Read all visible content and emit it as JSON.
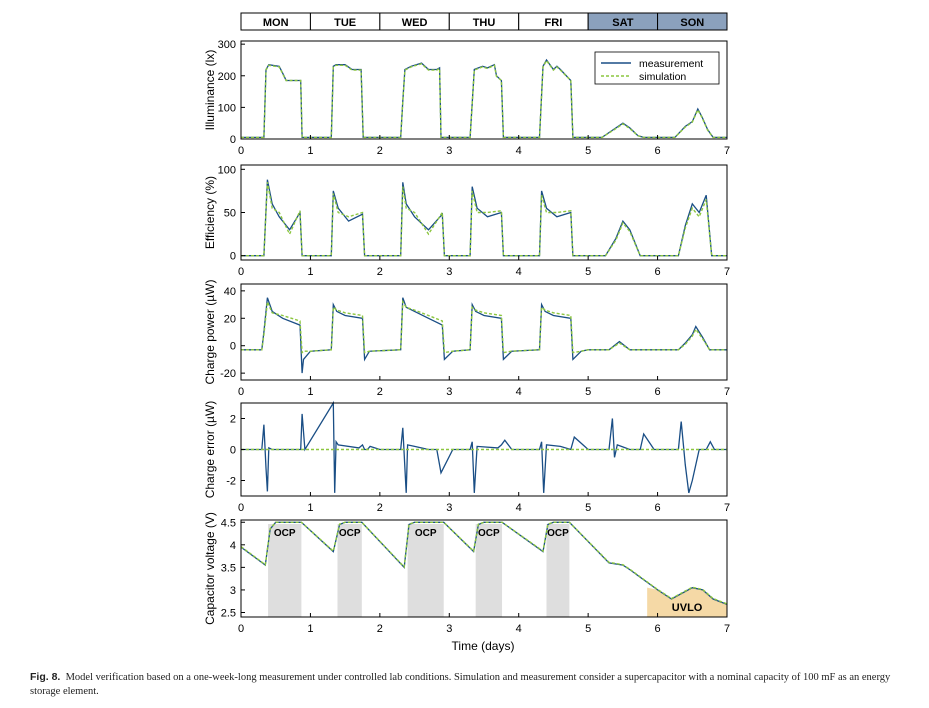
{
  "figure": {
    "caption_label": "Fig. 8.",
    "caption_text": "Model verification based on a one-week-long measurement under controlled lab conditions. Simulation and measurement consider a supercapacitor with a nominal capacity of 100 mF as an energy storage element.",
    "x_label": "Time (days)",
    "x_ticks": [
      "0",
      "1",
      "2",
      "3",
      "4",
      "5",
      "6",
      "7"
    ]
  },
  "colors": {
    "measurement": "#1a4e85",
    "simulation": "#8cc63f",
    "weekday_bg": "#ffffff",
    "weekend_bg": "#8ba1bd",
    "ocp_shade": "#dedede",
    "uvlo_shade": "#f5d9a6"
  },
  "days": [
    {
      "label": "MON",
      "weekend": false
    },
    {
      "label": "TUE",
      "weekend": false
    },
    {
      "label": "WED",
      "weekend": false
    },
    {
      "label": "THU",
      "weekend": false
    },
    {
      "label": "FRI",
      "weekend": false
    },
    {
      "label": "SAT",
      "weekend": true
    },
    {
      "label": "SON",
      "weekend": true
    }
  ],
  "chart_data": [
    {
      "type": "line",
      "id": "illuminance",
      "ylabel": "Illuminance (lx)",
      "xlim": [
        0,
        7
      ],
      "ylim": [
        0,
        310
      ],
      "yticks": [
        "0",
        "100",
        "200",
        "300"
      ],
      "legend": {
        "position": "top-right",
        "entries": [
          "measurement",
          "simulation"
        ]
      },
      "series": [
        {
          "name": "measurement",
          "x": [
            0,
            0.33,
            0.36,
            0.4,
            0.55,
            0.62,
            0.65,
            0.8,
            0.86,
            0.88,
            1.3,
            1.33,
            1.37,
            1.5,
            1.6,
            1.73,
            1.76,
            2.3,
            2.33,
            2.36,
            2.45,
            2.6,
            2.7,
            2.82,
            2.86,
            2.88,
            3.3,
            3.36,
            3.42,
            3.48,
            3.55,
            3.65,
            3.68,
            3.75,
            3.78,
            4.3,
            4.35,
            4.4,
            4.5,
            4.55,
            4.6,
            4.75,
            4.78,
            5,
            5.2,
            5.4,
            5.5,
            5.6,
            5.72,
            5.8,
            6,
            6.25,
            6.4,
            6.5,
            6.58,
            6.64,
            6.72,
            6.8,
            7
          ],
          "y": [
            5,
            5,
            220,
            235,
            230,
            200,
            185,
            185,
            185,
            5,
            5,
            230,
            235,
            235,
            220,
            220,
            5,
            5,
            120,
            220,
            230,
            240,
            220,
            220,
            225,
            5,
            5,
            220,
            225,
            230,
            225,
            235,
            200,
            185,
            5,
            5,
            230,
            250,
            220,
            230,
            220,
            185,
            5,
            5,
            5,
            35,
            50,
            35,
            10,
            5,
            5,
            5,
            40,
            55,
            95,
            70,
            30,
            5,
            5
          ]
        },
        {
          "name": "simulation",
          "x": [
            0,
            0.33,
            0.36,
            0.4,
            0.55,
            0.62,
            0.65,
            0.8,
            0.86,
            0.88,
            1.3,
            1.33,
            1.37,
            1.5,
            1.6,
            1.73,
            1.76,
            2.3,
            2.33,
            2.36,
            2.45,
            2.6,
            2.7,
            2.82,
            2.86,
            2.88,
            3.3,
            3.36,
            3.42,
            3.48,
            3.55,
            3.65,
            3.68,
            3.75,
            3.78,
            4.3,
            4.35,
            4.4,
            4.5,
            4.55,
            4.6,
            4.75,
            4.78,
            5,
            5.2,
            5.4,
            5.5,
            5.6,
            5.72,
            5.8,
            6,
            6.25,
            6.4,
            6.5,
            6.58,
            6.64,
            6.72,
            6.8,
            7
          ],
          "y": [
            5,
            5,
            218,
            233,
            228,
            198,
            185,
            185,
            185,
            5,
            5,
            228,
            233,
            233,
            218,
            218,
            5,
            5,
            118,
            218,
            228,
            238,
            218,
            218,
            223,
            5,
            5,
            218,
            223,
            228,
            223,
            233,
            198,
            185,
            5,
            5,
            228,
            248,
            218,
            228,
            218,
            185,
            5,
            5,
            5,
            33,
            48,
            33,
            10,
            5,
            5,
            5,
            38,
            53,
            92,
            68,
            28,
            5,
            5
          ]
        }
      ]
    },
    {
      "type": "line",
      "id": "efficiency",
      "ylabel": "Efficiency (%)",
      "xlim": [
        0,
        7
      ],
      "ylim": [
        -5,
        105
      ],
      "yticks": [
        "0",
        "50",
        "100"
      ],
      "series": [
        {
          "name": "measurement",
          "x": [
            0,
            0.33,
            0.38,
            0.45,
            0.55,
            0.7,
            0.85,
            0.88,
            1.3,
            1.33,
            1.4,
            1.55,
            1.75,
            1.78,
            2.3,
            2.33,
            2.38,
            2.5,
            2.7,
            2.9,
            2.93,
            3.3,
            3.33,
            3.4,
            3.55,
            3.75,
            3.78,
            4.3,
            4.33,
            4.4,
            4.55,
            4.75,
            4.78,
            5,
            5.25,
            5.4,
            5.5,
            5.6,
            5.75,
            6,
            6.3,
            6.4,
            6.5,
            6.6,
            6.7,
            6.78,
            7
          ],
          "y": [
            0,
            0,
            88,
            60,
            45,
            30,
            50,
            0,
            0,
            75,
            55,
            40,
            48,
            0,
            0,
            85,
            60,
            45,
            30,
            48,
            0,
            0,
            80,
            55,
            45,
            50,
            0,
            0,
            75,
            55,
            45,
            50,
            0,
            0,
            0,
            20,
            40,
            30,
            0,
            0,
            0,
            35,
            60,
            50,
            70,
            0,
            0
          ]
        },
        {
          "name": "simulation",
          "x": [
            0,
            0.33,
            0.38,
            0.45,
            0.55,
            0.7,
            0.85,
            0.88,
            1.3,
            1.33,
            1.4,
            1.55,
            1.75,
            1.78,
            2.3,
            2.33,
            2.38,
            2.5,
            2.7,
            2.9,
            2.93,
            3.3,
            3.33,
            3.4,
            3.55,
            3.75,
            3.78,
            4.3,
            4.33,
            4.4,
            4.55,
            4.75,
            4.78,
            5,
            5.25,
            5.4,
            5.5,
            5.6,
            5.75,
            6,
            6.3,
            6.4,
            6.5,
            6.6,
            6.7,
            6.78,
            7
          ],
          "y": [
            0,
            0,
            85,
            55,
            50,
            25,
            52,
            0,
            0,
            72,
            50,
            45,
            50,
            0,
            0,
            80,
            55,
            50,
            25,
            50,
            0,
            0,
            75,
            50,
            50,
            52,
            0,
            0,
            70,
            50,
            50,
            52,
            0,
            0,
            0,
            18,
            38,
            28,
            0,
            0,
            0,
            32,
            55,
            45,
            65,
            0,
            0
          ]
        }
      ]
    },
    {
      "type": "line",
      "id": "charge_power",
      "ylabel": "Charge power (µW)",
      "xlim": [
        0,
        7
      ],
      "ylim": [
        -25,
        45
      ],
      "yticks": [
        "-20",
        "0",
        "20",
        "40"
      ],
      "series": [
        {
          "name": "measurement",
          "x": [
            0,
            0.3,
            0.33,
            0.38,
            0.45,
            0.6,
            0.85,
            0.88,
            0.9,
            1,
            1.3,
            1.33,
            1.38,
            1.5,
            1.75,
            1.78,
            1.85,
            2.3,
            2.33,
            2.38,
            2.5,
            2.7,
            2.9,
            2.93,
            3.05,
            3.3,
            3.33,
            3.38,
            3.5,
            3.75,
            3.78,
            3.9,
            4.3,
            4.33,
            4.38,
            4.5,
            4.75,
            4.78,
            4.9,
            5,
            5.3,
            5.45,
            5.6,
            6,
            6.3,
            6.4,
            6.5,
            6.55,
            6.65,
            6.75,
            7
          ],
          "y": [
            -3,
            -3,
            10,
            35,
            25,
            20,
            15,
            -20,
            -10,
            -4,
            -3,
            30,
            25,
            22,
            20,
            -10,
            -4,
            -3,
            35,
            28,
            25,
            20,
            15,
            -10,
            -4,
            -3,
            30,
            25,
            22,
            20,
            -10,
            -4,
            -3,
            30,
            25,
            22,
            20,
            -10,
            -4,
            -3,
            -3,
            3,
            -3,
            -3,
            -3,
            2,
            8,
            14,
            6,
            -3,
            -3
          ]
        },
        {
          "name": "simulation",
          "x": [
            0,
            0.3,
            0.33,
            0.38,
            0.45,
            0.6,
            0.85,
            0.88,
            0.9,
            1,
            1.3,
            1.33,
            1.38,
            1.5,
            1.75,
            1.78,
            1.85,
            2.3,
            2.33,
            2.38,
            2.5,
            2.7,
            2.9,
            2.93,
            3.05,
            3.3,
            3.33,
            3.38,
            3.5,
            3.75,
            3.78,
            3.9,
            4.3,
            4.33,
            4.38,
            4.5,
            4.75,
            4.78,
            4.9,
            5,
            5.3,
            5.45,
            5.6,
            6,
            6.3,
            6.4,
            6.5,
            6.55,
            6.65,
            6.75,
            7
          ],
          "y": [
            -3,
            -3,
            8,
            32,
            24,
            22,
            18,
            -5,
            -4,
            -4,
            -3,
            28,
            26,
            24,
            22,
            -5,
            -4,
            -3,
            32,
            28,
            26,
            22,
            18,
            -5,
            -4,
            -3,
            28,
            26,
            24,
            22,
            -5,
            -4,
            -3,
            28,
            26,
            24,
            22,
            -5,
            -4,
            -3,
            -3,
            2,
            -3,
            -3,
            -3,
            1,
            7,
            12,
            5,
            -3,
            -3
          ]
        }
      ]
    },
    {
      "type": "line",
      "id": "charge_error",
      "ylabel": "Charge error (µW)",
      "xlim": [
        0,
        7
      ],
      "ylim": [
        -3,
        3
      ],
      "yticks": [
        "-2",
        "0",
        "2"
      ],
      "series": [
        {
          "name": "measurement",
          "x": [
            0,
            0.3,
            0.33,
            0.36,
            0.38,
            0.4,
            0.45,
            0.86,
            0.88,
            0.92,
            1.33,
            1.35,
            1.37,
            1.4,
            1.7,
            1.75,
            1.78,
            1.82,
            1.86,
            2,
            2.3,
            2.33,
            2.38,
            2.4,
            2.5,
            2.7,
            2.82,
            2.88,
            3.05,
            3.3,
            3.33,
            3.36,
            3.4,
            3.7,
            3.75,
            3.8,
            3.9,
            4,
            4.3,
            4.33,
            4.36,
            4.4,
            4.6,
            4.75,
            4.8,
            4.95,
            5,
            5.3,
            5.35,
            5.38,
            5.42,
            5.6,
            5.75,
            5.8,
            5.95,
            6,
            6.3,
            6.34,
            6.4,
            6.45,
            6.5,
            6.6,
            6.7,
            6.76,
            6.82,
            7
          ],
          "y": [
            0,
            0,
            1.6,
            -1.2,
            -2.7,
            0.1,
            0,
            0,
            2.3,
            0,
            3,
            -2.8,
            0.5,
            0.3,
            0.1,
            0.3,
            0,
            0,
            0.2,
            0,
            0,
            1.4,
            -2.8,
            0.3,
            0.2,
            0,
            0,
            -1.5,
            0,
            0,
            0.5,
            -2.8,
            0.2,
            0.1,
            0.3,
            0.6,
            0,
            0,
            0,
            0.5,
            -2.8,
            0.3,
            0.2,
            0,
            0.8,
            0.2,
            0,
            0,
            2,
            -0.5,
            0.3,
            0,
            0,
            1,
            0,
            0,
            0,
            1.8,
            -1,
            -2.8,
            -2,
            0,
            0,
            0.5,
            0,
            0
          ]
        },
        {
          "name": "simulation",
          "x": [
            0,
            7
          ],
          "y": [
            0,
            0
          ]
        }
      ]
    },
    {
      "type": "line",
      "id": "capacitor_voltage",
      "ylabel": "Capacitor voltage (V)",
      "xlim": [
        0,
        7
      ],
      "ylim": [
        2.4,
        4.55
      ],
      "yticks": [
        "2.5",
        "3",
        "3.5",
        "4",
        "4.5"
      ],
      "annotations": [
        {
          "label": "OCP",
          "x0": 0.39,
          "x1": 0.87
        },
        {
          "label": "OCP",
          "x0": 1.39,
          "x1": 1.74
        },
        {
          "label": "OCP",
          "x0": 2.4,
          "x1": 2.92
        },
        {
          "label": "OCP",
          "x0": 3.38,
          "x1": 3.76
        },
        {
          "label": "OCP",
          "x0": 4.4,
          "x1": 4.73
        }
      ],
      "uvlo": {
        "label": "UVLO",
        "x0": 5.85,
        "x1": 7
      },
      "series": [
        {
          "name": "measurement",
          "x": [
            0,
            0.35,
            0.42,
            0.5,
            0.87,
            1.33,
            1.42,
            1.5,
            1.74,
            2.35,
            2.42,
            2.5,
            2.92,
            3.35,
            3.42,
            3.5,
            3.76,
            4.35,
            4.42,
            4.5,
            4.73,
            5.3,
            5.5,
            5.6,
            6,
            6.2,
            6.5,
            6.65,
            6.8,
            7
          ],
          "y": [
            3.95,
            3.55,
            4.35,
            4.5,
            4.5,
            3.85,
            4.45,
            4.5,
            4.5,
            3.5,
            4.45,
            4.5,
            4.5,
            3.85,
            4.45,
            4.5,
            4.5,
            3.85,
            4.45,
            4.5,
            4.5,
            3.6,
            3.55,
            3.45,
            3.0,
            2.8,
            3.05,
            3.0,
            2.8,
            2.68
          ]
        },
        {
          "name": "simulation",
          "x": [
            0,
            0.35,
            0.42,
            0.5,
            0.87,
            1.33,
            1.42,
            1.5,
            1.74,
            2.35,
            2.42,
            2.5,
            2.92,
            3.35,
            3.42,
            3.5,
            3.76,
            4.35,
            4.42,
            4.5,
            4.73,
            5.3,
            5.5,
            5.6,
            6,
            6.2,
            6.5,
            6.65,
            6.8,
            7
          ],
          "y": [
            3.96,
            3.56,
            4.36,
            4.5,
            4.5,
            3.86,
            4.46,
            4.5,
            4.5,
            3.51,
            4.46,
            4.5,
            4.5,
            3.86,
            4.46,
            4.5,
            4.5,
            3.86,
            4.46,
            4.5,
            4.5,
            3.61,
            3.56,
            3.46,
            3.01,
            2.81,
            3.06,
            3.01,
            2.81,
            2.69
          ]
        }
      ]
    }
  ]
}
